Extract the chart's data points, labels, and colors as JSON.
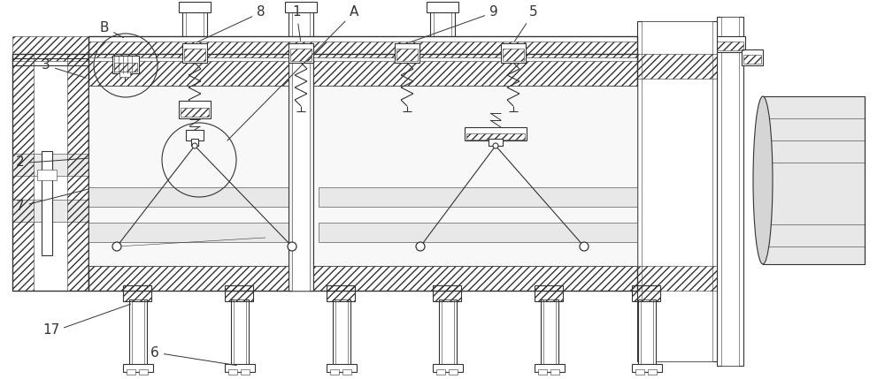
{
  "bg_color": "#ffffff",
  "line_color": "#333333",
  "figsize": [
    10.0,
    4.29
  ],
  "dpi": 100,
  "lw": 0.8,
  "lw_thin": 0.4,
  "lw_thick": 1.0,
  "label_fs": 11
}
